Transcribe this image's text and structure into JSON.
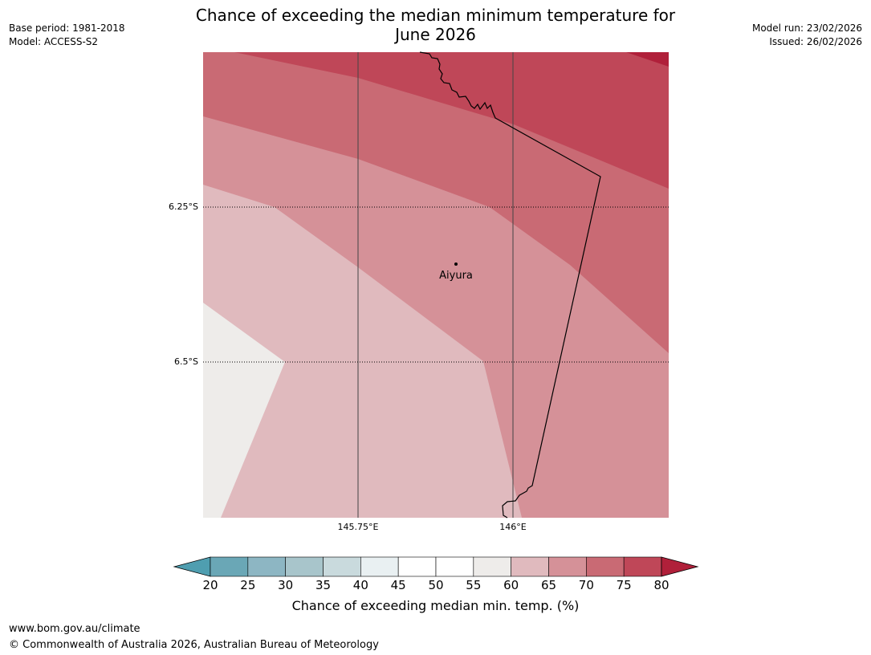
{
  "header": {
    "title_line1": "Chance of exceeding the median minimum temperature for",
    "title_line2": "June 2026",
    "base_period": "Base period: 1981-2018",
    "model": "Model: ACCESS-S2",
    "model_run": "Model run: 23/02/2026",
    "issued": "Issued: 26/02/2026"
  },
  "map": {
    "latitude_labels": [
      "6.25°S",
      "6.5°S"
    ],
    "longitude_labels": [
      "145.75°E",
      "146°E"
    ],
    "place": "Aiyura",
    "colors": {
      "c55_60": "#eeecea",
      "c60_65": "#e0babe",
      "c65_70": "#d59198",
      "c70_75": "#c96a74",
      "c75_80": "#bf4758",
      "c80_plus": "#b0203a",
      "border": "#000000",
      "gridline": "#444444"
    }
  },
  "colorbar": {
    "ticks": [
      "20",
      "25",
      "30",
      "35",
      "40",
      "45",
      "50",
      "55",
      "60",
      "65",
      "70",
      "75",
      "80"
    ],
    "colors": [
      "#6aa7b6",
      "#8db6c3",
      "#a8c5cb",
      "#c9dadd",
      "#e9f0f2",
      "#ffffff",
      "#ffffff",
      "#eeecea",
      "#e0babe",
      "#d59198",
      "#c96a74",
      "#bf4758"
    ],
    "low_extend_color": "#4f9eb0",
    "high_extend_color": "#b0203a",
    "label": "Chance of exceeding median min. temp. (%)"
  },
  "footer": {
    "website": "www.bom.gov.au/climate",
    "copyright": "© Commonwealth of Australia 2026, Australian Bureau of Meteorology"
  }
}
